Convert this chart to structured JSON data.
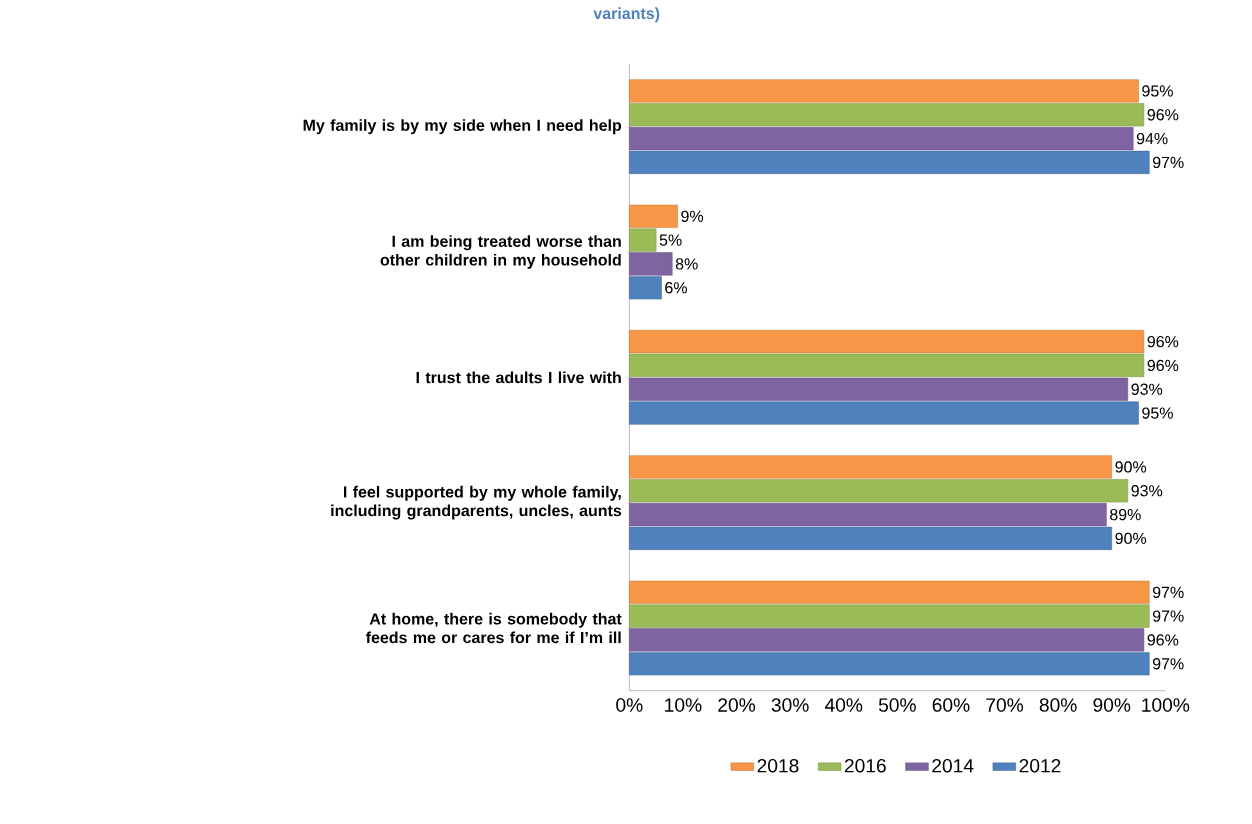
{
  "chart_data": {
    "type": "bar",
    "orientation": "horizontal",
    "title": "variants)",
    "categories": [
      "My family is by my side when I need help",
      "I am being treated worse than other children in my household",
      "I trust the adults I live with",
      "I feel supported by my whole family, including grandparents, uncles, aunts",
      "At home, there is somebody that feeds me or cares for me if I’m ill"
    ],
    "series": [
      {
        "name": "2018",
        "color": "#f79646",
        "values": [
          95,
          9,
          96,
          90,
          97
        ],
        "value_labels": [
          "95%",
          "9%",
          "96%",
          "90%",
          "97%"
        ]
      },
      {
        "name": "2016",
        "color": "#9bbb59",
        "values": [
          96,
          5,
          96,
          93,
          97
        ],
        "value_labels": [
          "96%",
          "5%",
          "96%",
          "93%",
          "97%"
        ]
      },
      {
        "name": "2014",
        "color": "#8064a2",
        "values": [
          94,
          8,
          93,
          89,
          96
        ],
        "value_labels": [
          "94%",
          "8%",
          "93%",
          "89%",
          "96%"
        ]
      },
      {
        "name": "2012",
        "color": "#4f81bd",
        "values": [
          97,
          6,
          95,
          90,
          97
        ],
        "value_labels": [
          "97%",
          "6%",
          "95%",
          "90%",
          "97%"
        ]
      }
    ],
    "xlim": [
      0,
      100
    ],
    "xticks": [
      {
        "value": 0,
        "label": "0%"
      },
      {
        "value": 10,
        "label": "10%"
      },
      {
        "value": 20,
        "label": "20%"
      },
      {
        "value": 30,
        "label": "30%"
      },
      {
        "value": 40,
        "label": "40%"
      },
      {
        "value": 50,
        "label": "50%"
      },
      {
        "value": 60,
        "label": "60%"
      },
      {
        "value": 70,
        "label": "70%"
      },
      {
        "value": 80,
        "label": "80%"
      },
      {
        "value": 90,
        "label": "90%"
      },
      {
        "value": 100,
        "label": "100%"
      }
    ],
    "grid": false,
    "legend": "bottom"
  }
}
